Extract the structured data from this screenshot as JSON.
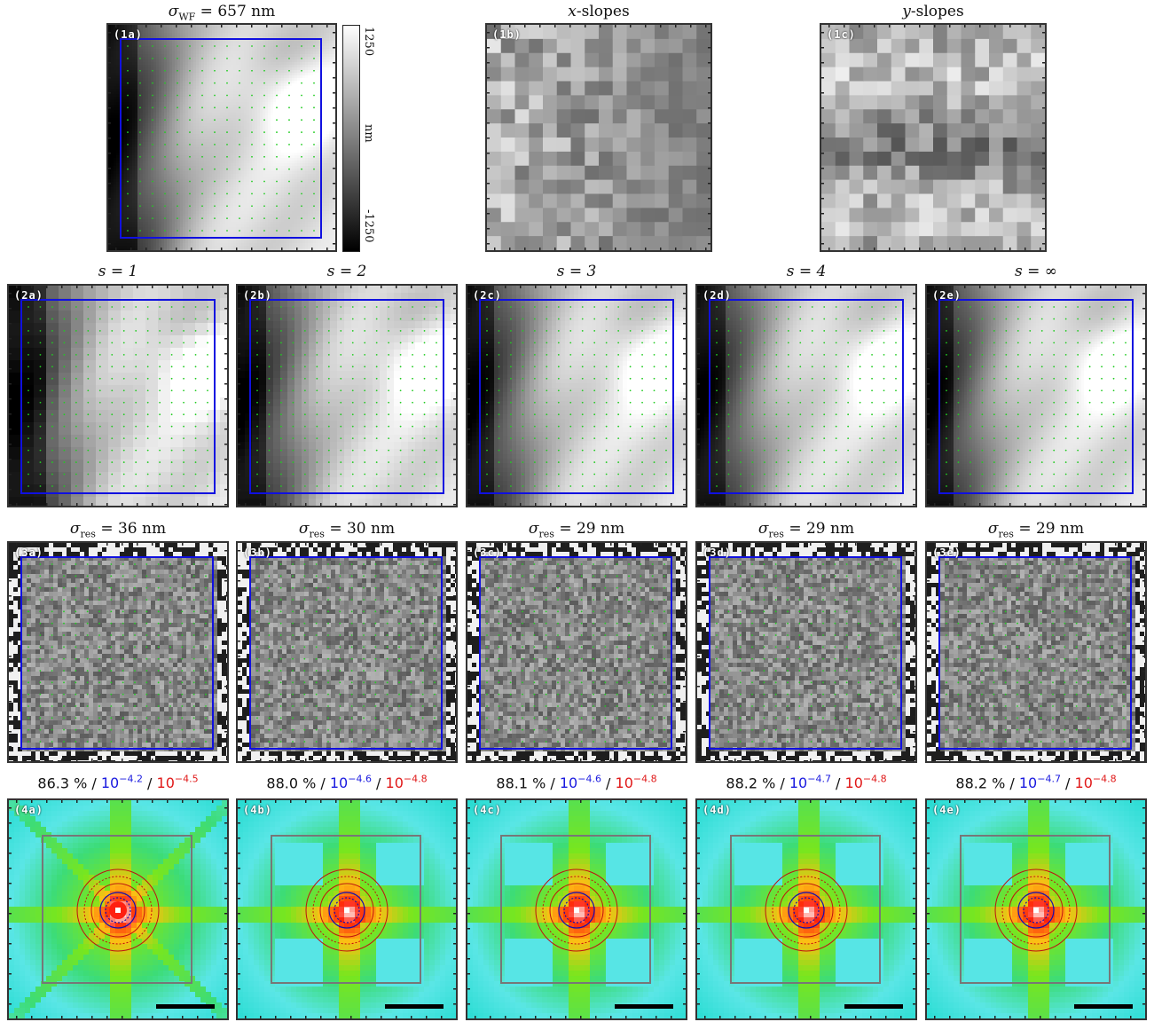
{
  "row1": [
    {
      "label": "(1a)",
      "title_main": "σ",
      "title_sub": "WF",
      "title_rest": " = 657 nm"
    },
    {
      "label": "(1b)",
      "title_main": "x",
      "title_rest": "-slopes"
    },
    {
      "label": "(1c)",
      "title_main": "y",
      "title_rest": "-slopes"
    }
  ],
  "colorbar": {
    "top": "1250",
    "bottom": "-1250",
    "unit": "nm"
  },
  "row2": [
    {
      "label": "(2a)",
      "title": "s = 1"
    },
    {
      "label": "(2b)",
      "title": "s = 2"
    },
    {
      "label": "(2c)",
      "title": "s = 3"
    },
    {
      "label": "(2d)",
      "title": "s = 4"
    },
    {
      "label": "(2e)",
      "title": "s = ∞"
    }
  ],
  "row3": [
    {
      "label": "(3a)",
      "sigma": "σ",
      "sub": "res",
      "value": " = 36 nm"
    },
    {
      "label": "(3b)",
      "sigma": "σ",
      "sub": "res",
      "value": " = 30 nm"
    },
    {
      "label": "(3c)",
      "sigma": "σ",
      "sub": "res",
      "value": " = 29 nm"
    },
    {
      "label": "(3d)",
      "sigma": "σ",
      "sub": "res",
      "value": " = 29 nm"
    },
    {
      "label": "(3e)",
      "sigma": "σ",
      "sub": "res",
      "value": " = 29 nm"
    }
  ],
  "row4": [
    {
      "label": "(4a)",
      "pct": "86.3 %",
      "sep": " / ",
      "blue_base": "10",
      "blue_exp": "−4.2",
      "red_base": "10",
      "red_exp": "−4.5"
    },
    {
      "label": "(4b)",
      "pct": "88.0 %",
      "sep": " / ",
      "blue_base": "10",
      "blue_exp": "−4.6",
      "red_base": "10",
      "red_exp": "−4.8"
    },
    {
      "label": "(4c)",
      "pct": "88.1 %",
      "sep": " / ",
      "blue_base": "10",
      "blue_exp": "−4.6",
      "red_base": "10",
      "red_exp": "−4.8"
    },
    {
      "label": "(4d)",
      "pct": "88.2 %",
      "sep": " / ",
      "blue_base": "10",
      "blue_exp": "−4.7",
      "red_base": "10",
      "red_exp": "−4.8"
    },
    {
      "label": "(4e)",
      "pct": "88.2 %",
      "sep": " / ",
      "blue_base": "10",
      "blue_exp": "−4.7",
      "red_base": "10",
      "red_exp": "−4.8"
    }
  ],
  "colors": {
    "box": "#1010e0",
    "dots": "#22cc22",
    "frame": "#333333",
    "psf_red": "#c01010",
    "psf_blue": "#1010b0"
  }
}
